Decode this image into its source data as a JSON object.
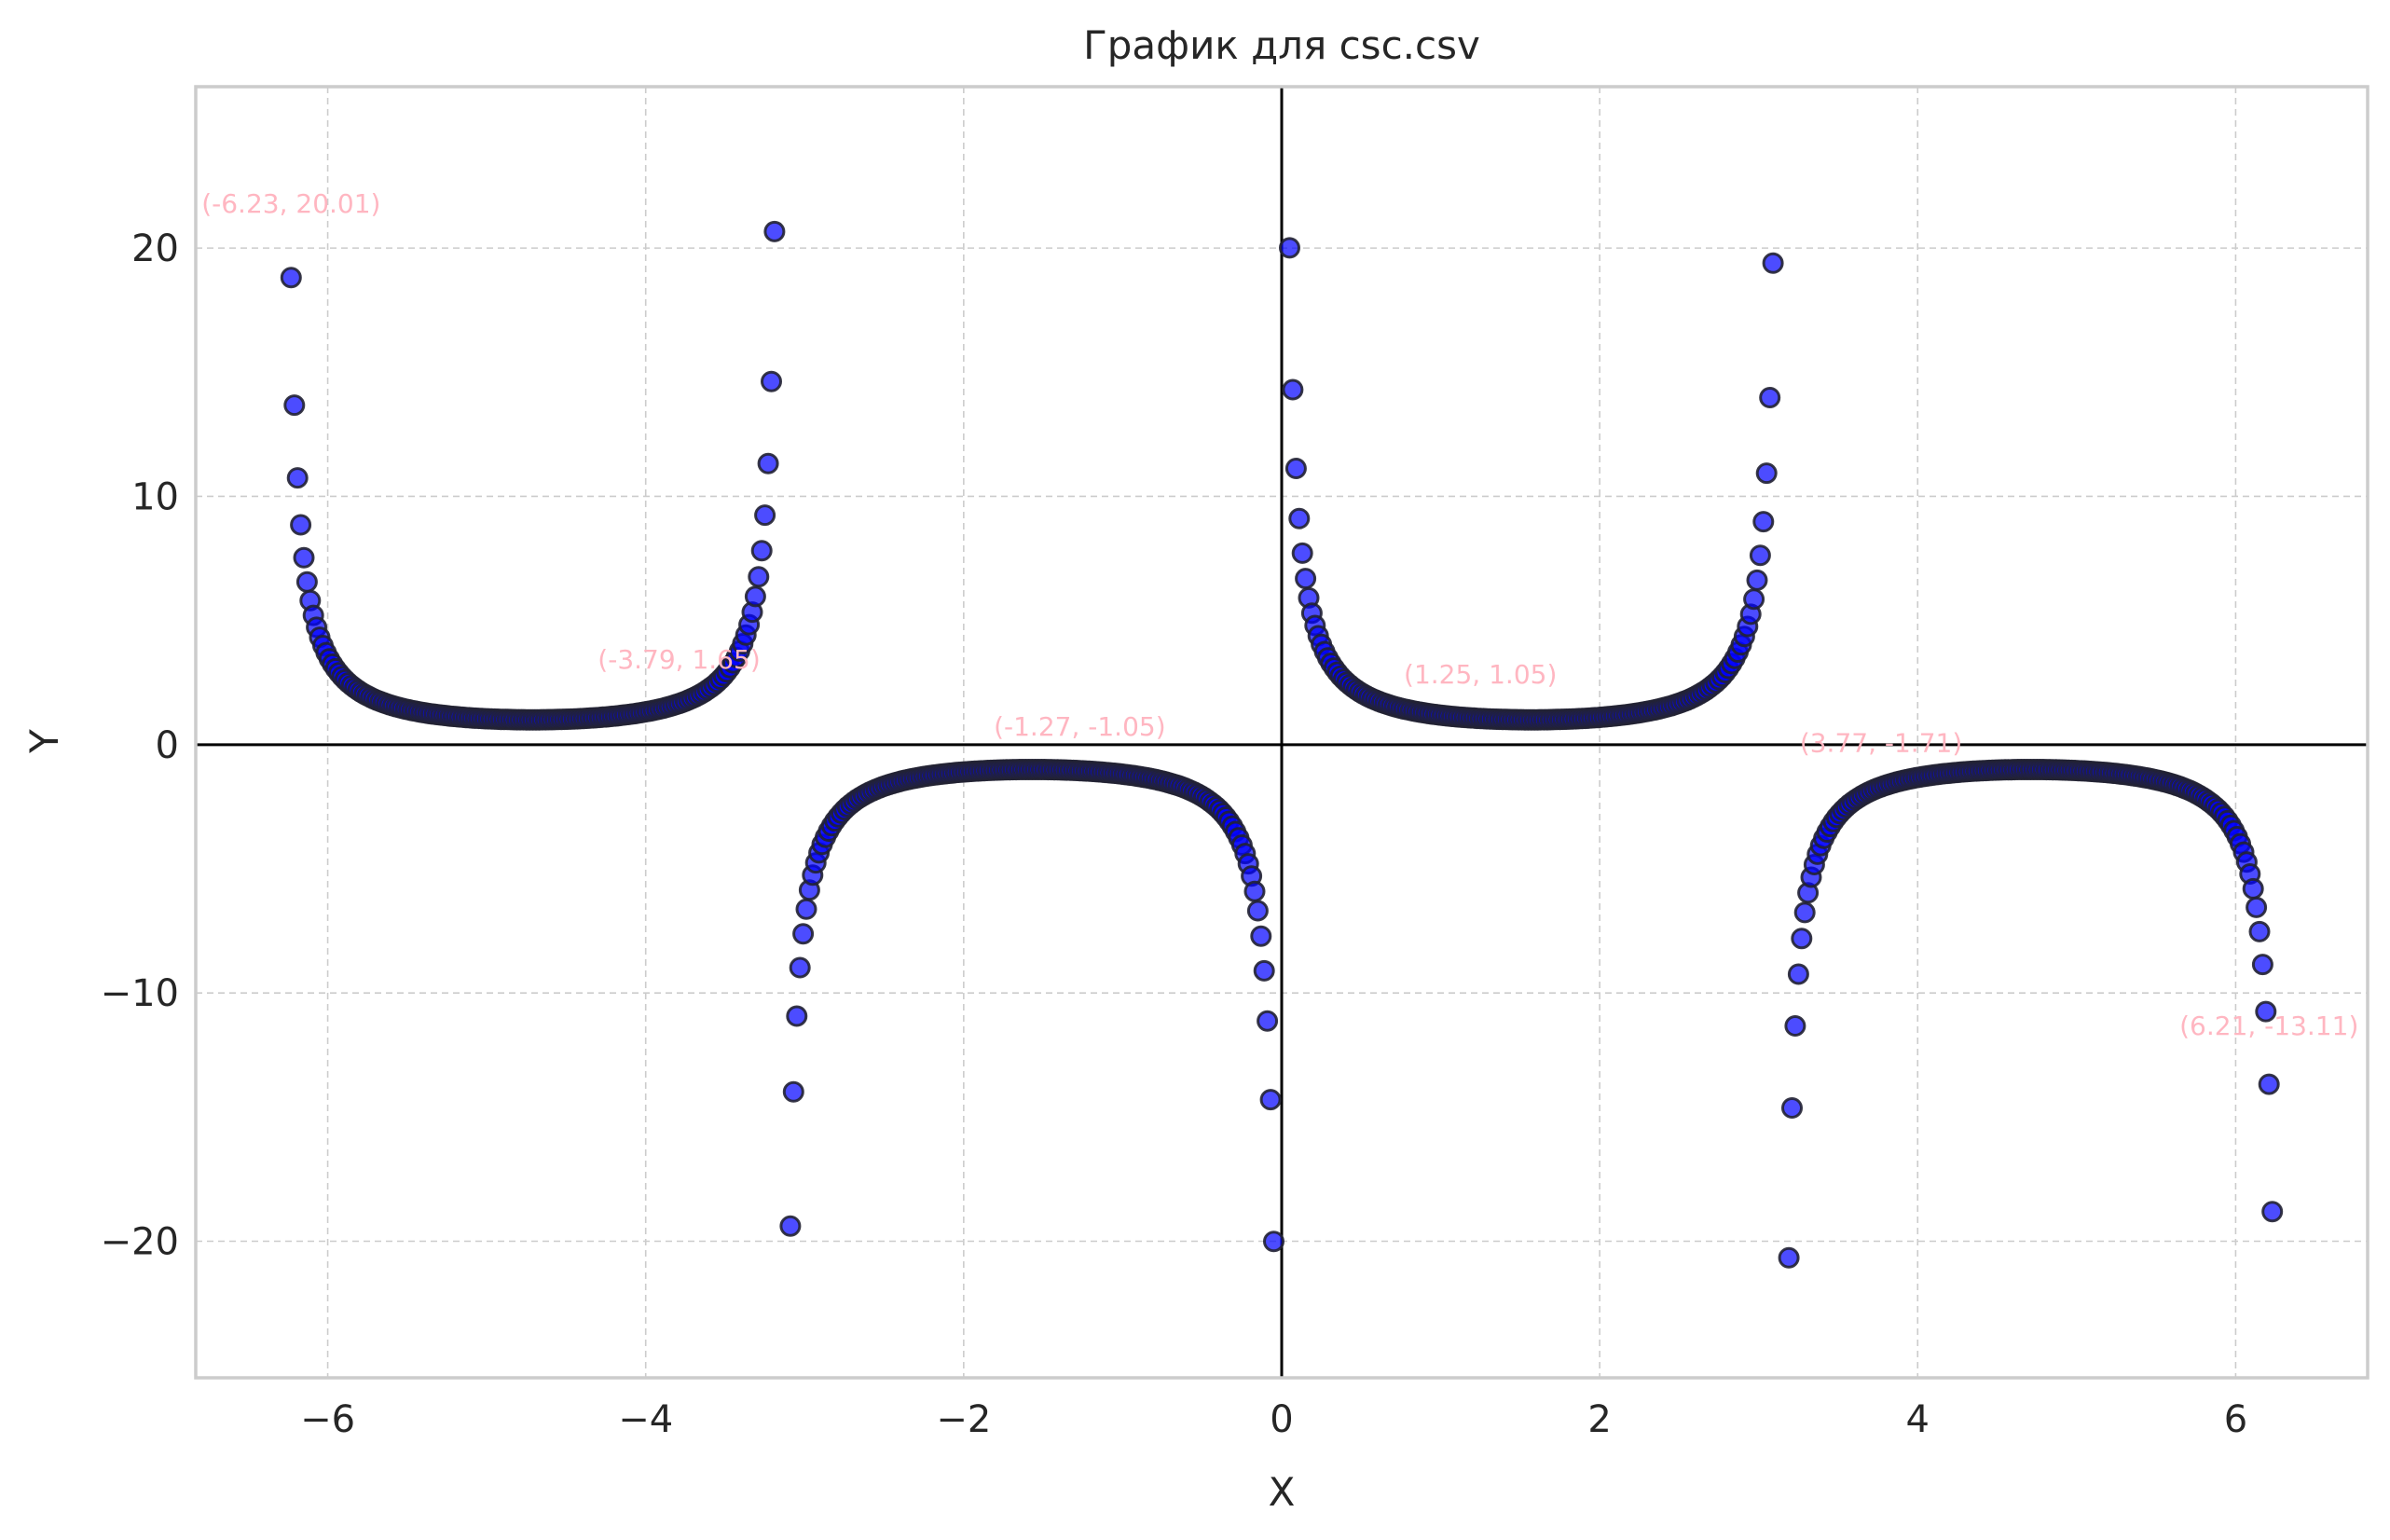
{
  "chart_data": {
    "type": "scatter",
    "title": "График для csc.csv",
    "xlabel": "X",
    "ylabel": "Y",
    "xlim": [
      -6.83,
      6.83
    ],
    "ylim": [
      -25.5,
      26.5
    ],
    "xticks": [
      -6,
      -4,
      -2,
      0,
      2,
      4,
      6
    ],
    "xtick_labels": [
      "−6",
      "−4",
      "−2",
      "0",
      "2",
      "4",
      "6"
    ],
    "yticks": [
      -20,
      -10,
      0,
      10,
      20
    ],
    "ytick_labels": [
      "−20",
      "−10",
      "0",
      "10",
      "20"
    ],
    "grid": true,
    "function": "y = csc(x)",
    "x_range": [
      -6.23,
      6.23
    ],
    "point_step": 0.02,
    "marker_color": "#0000ff",
    "edge_color": "#222233",
    "annotation_color": "#ffb6c1",
    "zero_lines_color": "#000000",
    "annotations": [
      {
        "text": "(-6.23, 20.01)",
        "x": -6.23,
        "y": 20.01
      },
      {
        "text": "(-3.79, 1.65)",
        "x": -3.79,
        "y": 1.65
      },
      {
        "text": "(-1.27, -1.05)",
        "x": -1.27,
        "y": -1.05
      },
      {
        "text": "(1.25, 1.05)",
        "x": 1.25,
        "y": 1.05
      },
      {
        "text": "(3.77, -1.71)",
        "x": 3.77,
        "y": -1.71
      },
      {
        "text": "(6.21, -13.11)",
        "x": 6.21,
        "y": -13.11
      }
    ]
  }
}
